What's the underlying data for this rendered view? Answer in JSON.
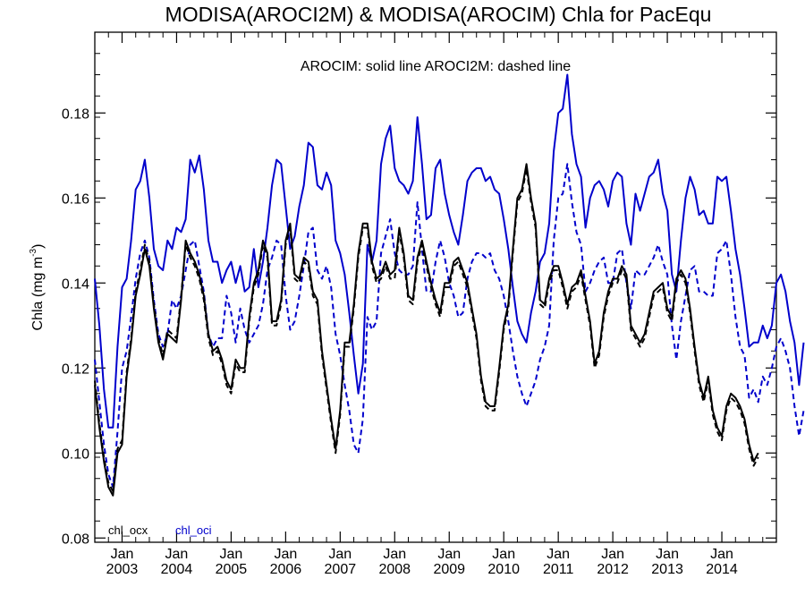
{
  "chart_data": {
    "type": "line",
    "title": "MODISA(AROCI2M) & MODISA(AROCIM)  Chla for PacEqu",
    "annotation": "AROCIM: solid line   AROCI2M: dashed line",
    "ylabel_main": "Chla (mg m",
    "ylabel_sup": "-3",
    "ylabel_close": ")",
    "ylim": [
      0.079,
      0.199
    ],
    "xlim": [
      2002.5,
      2015.0
    ],
    "y_ticks": [
      0.08,
      0.1,
      0.12,
      0.14,
      0.16,
      0.18
    ],
    "y_tick_labels": [
      "0.08",
      "0.10",
      "0.12",
      "0.14",
      "0.16",
      "0.18"
    ],
    "x_ticks": [
      2003,
      2004,
      2005,
      2006,
      2007,
      2008,
      2009,
      2010,
      2011,
      2012,
      2013,
      2014
    ],
    "x_tick_month": "Jan",
    "x_tick_labels": [
      "2003",
      "2004",
      "2005",
      "2006",
      "2007",
      "2008",
      "2009",
      "2010",
      "2011",
      "2012",
      "2013",
      "2014"
    ],
    "x_start": 2002.5,
    "x_step_months": 1,
    "legend": [
      {
        "label": "chl_ocx",
        "color": "#000000"
      },
      {
        "label": "chl_oci",
        "color": "#0000cc"
      }
    ],
    "series": [
      {
        "name": "chl_oci AROCIM",
        "color": "#0000cc",
        "style": "solid",
        "values": [
          0.141,
          0.13,
          0.115,
          0.106,
          0.106,
          0.125,
          0.139,
          0.141,
          0.15,
          0.162,
          0.164,
          0.169,
          0.16,
          0.148,
          0.144,
          0.143,
          0.15,
          0.148,
          0.153,
          0.152,
          0.155,
          0.169,
          0.166,
          0.17,
          0.162,
          0.15,
          0.145,
          0.145,
          0.14,
          0.143,
          0.145,
          0.14,
          0.144,
          0.138,
          0.139,
          0.148,
          0.139,
          0.145,
          0.153,
          0.163,
          0.169,
          0.168,
          0.158,
          0.148,
          0.151,
          0.158,
          0.163,
          0.173,
          0.172,
          0.163,
          0.162,
          0.166,
          0.163,
          0.15,
          0.147,
          0.142,
          0.133,
          0.123,
          0.114,
          0.121,
          0.149,
          0.145,
          0.15,
          0.168,
          0.174,
          0.177,
          0.167,
          0.164,
          0.163,
          0.161,
          0.164,
          0.179,
          0.168,
          0.155,
          0.156,
          0.167,
          0.169,
          0.161,
          0.156,
          0.152,
          0.149,
          0.156,
          0.164,
          0.166,
          0.167,
          0.167,
          0.164,
          0.165,
          0.162,
          0.161,
          0.155,
          0.148,
          0.139,
          0.131,
          0.128,
          0.126,
          0.133,
          0.138,
          0.145,
          0.147,
          0.154,
          0.171,
          0.18,
          0.181,
          0.189,
          0.175,
          0.168,
          0.165,
          0.153,
          0.16,
          0.163,
          0.164,
          0.162,
          0.158,
          0.164,
          0.166,
          0.165,
          0.154,
          0.149,
          0.161,
          0.157,
          0.161,
          0.165,
          0.166,
          0.169,
          0.161,
          0.157,
          0.142,
          0.138,
          0.15,
          0.16,
          0.165,
          0.162,
          0.156,
          0.157,
          0.154,
          0.154,
          0.165,
          0.164,
          0.165,
          0.157,
          0.148,
          0.142,
          0.134,
          0.125,
          0.126,
          0.126,
          0.13,
          0.127,
          0.13,
          0.14,
          0.142,
          0.138,
          0.131,
          0.126,
          0.116,
          0.126
        ]
      },
      {
        "name": "chl_oci AROCI2M",
        "color": "#0000cc",
        "style": "dashed",
        "values": [
          0.122,
          0.112,
          0.102,
          0.095,
          0.092,
          0.105,
          0.12,
          0.124,
          0.132,
          0.141,
          0.147,
          0.15,
          0.146,
          0.136,
          0.128,
          0.125,
          0.128,
          0.136,
          0.134,
          0.137,
          0.143,
          0.149,
          0.15,
          0.144,
          0.138,
          0.128,
          0.125,
          0.127,
          0.127,
          0.137,
          0.133,
          0.126,
          0.134,
          0.129,
          0.126,
          0.128,
          0.13,
          0.135,
          0.143,
          0.146,
          0.15,
          0.149,
          0.137,
          0.129,
          0.131,
          0.137,
          0.144,
          0.152,
          0.153,
          0.143,
          0.141,
          0.144,
          0.139,
          0.128,
          0.123,
          0.116,
          0.11,
          0.102,
          0.1,
          0.108,
          0.132,
          0.129,
          0.131,
          0.147,
          0.151,
          0.155,
          0.147,
          0.143,
          0.142,
          0.142,
          0.144,
          0.159,
          0.148,
          0.138,
          0.138,
          0.145,
          0.15,
          0.146,
          0.14,
          0.137,
          0.132,
          0.133,
          0.141,
          0.145,
          0.147,
          0.147,
          0.146,
          0.147,
          0.143,
          0.141,
          0.137,
          0.131,
          0.124,
          0.118,
          0.114,
          0.111,
          0.114,
          0.117,
          0.122,
          0.125,
          0.13,
          0.15,
          0.16,
          0.161,
          0.168,
          0.159,
          0.152,
          0.149,
          0.138,
          0.14,
          0.143,
          0.145,
          0.146,
          0.14,
          0.14,
          0.147,
          0.148,
          0.14,
          0.134,
          0.143,
          0.142,
          0.142,
          0.144,
          0.146,
          0.149,
          0.145,
          0.142,
          0.13,
          0.122,
          0.131,
          0.137,
          0.143,
          0.144,
          0.138,
          0.138,
          0.137,
          0.137,
          0.147,
          0.148,
          0.15,
          0.142,
          0.132,
          0.125,
          0.123,
          0.113,
          0.115,
          0.112,
          0.118,
          0.116,
          0.12,
          0.125,
          0.127,
          0.124,
          0.12,
          0.111,
          0.104,
          0.11
        ]
      },
      {
        "name": "chl_ocx AROCIM",
        "color": "#000000",
        "style": "solid",
        "values": [
          0.116,
          0.106,
          0.098,
          0.092,
          0.09,
          0.1,
          0.102,
          0.118,
          0.126,
          0.137,
          0.142,
          0.148,
          0.144,
          0.134,
          0.126,
          0.122,
          0.128,
          0.127,
          0.126,
          0.136,
          0.15,
          0.147,
          0.145,
          0.142,
          0.137,
          0.128,
          0.124,
          0.125,
          0.122,
          0.117,
          0.115,
          0.122,
          0.12,
          0.12,
          0.132,
          0.14,
          0.143,
          0.15,
          0.147,
          0.131,
          0.131,
          0.136,
          0.15,
          0.154,
          0.142,
          0.141,
          0.146,
          0.145,
          0.138,
          0.136,
          0.124,
          0.116,
          0.108,
          0.101,
          0.11,
          0.126,
          0.126,
          0.135,
          0.147,
          0.154,
          0.154,
          0.145,
          0.141,
          0.142,
          0.145,
          0.142,
          0.143,
          0.153,
          0.147,
          0.137,
          0.136,
          0.146,
          0.15,
          0.145,
          0.14,
          0.136,
          0.133,
          0.14,
          0.14,
          0.145,
          0.146,
          0.143,
          0.14,
          0.134,
          0.128,
          0.118,
          0.112,
          0.111,
          0.111,
          0.12,
          0.13,
          0.135,
          0.148,
          0.16,
          0.162,
          0.168,
          0.16,
          0.154,
          0.136,
          0.135,
          0.141,
          0.144,
          0.144,
          0.14,
          0.135,
          0.139,
          0.14,
          0.143,
          0.137,
          0.131,
          0.121,
          0.124,
          0.133,
          0.138,
          0.141,
          0.141,
          0.144,
          0.142,
          0.13,
          0.128,
          0.126,
          0.128,
          0.133,
          0.138,
          0.139,
          0.14,
          0.134,
          0.132,
          0.141,
          0.143,
          0.141,
          0.134,
          0.125,
          0.117,
          0.113,
          0.118,
          0.11,
          0.106,
          0.104,
          0.111,
          0.114,
          0.113,
          0.111,
          0.108,
          0.102,
          0.098,
          0.1
        ]
      },
      {
        "name": "chl_ocx AROCI2M",
        "color": "#000000",
        "style": "dashed",
        "values": [
          0.117,
          0.107,
          0.099,
          0.093,
          0.091,
          0.101,
          0.103,
          0.119,
          0.127,
          0.138,
          0.143,
          0.149,
          0.145,
          0.135,
          0.127,
          0.123,
          0.129,
          0.128,
          0.127,
          0.137,
          0.149,
          0.146,
          0.144,
          0.141,
          0.136,
          0.127,
          0.123,
          0.124,
          0.121,
          0.116,
          0.114,
          0.121,
          0.119,
          0.119,
          0.131,
          0.139,
          0.142,
          0.149,
          0.146,
          0.13,
          0.13,
          0.135,
          0.149,
          0.153,
          0.141,
          0.14,
          0.145,
          0.144,
          0.137,
          0.135,
          0.123,
          0.115,
          0.107,
          0.1,
          0.109,
          0.125,
          0.125,
          0.134,
          0.146,
          0.153,
          0.153,
          0.144,
          0.14,
          0.141,
          0.144,
          0.141,
          0.141,
          0.152,
          0.146,
          0.136,
          0.135,
          0.145,
          0.149,
          0.144,
          0.139,
          0.135,
          0.132,
          0.139,
          0.139,
          0.144,
          0.145,
          0.142,
          0.139,
          0.133,
          0.127,
          0.117,
          0.111,
          0.11,
          0.11,
          0.119,
          0.129,
          0.134,
          0.147,
          0.159,
          0.161,
          0.167,
          0.159,
          0.153,
          0.135,
          0.134,
          0.14,
          0.143,
          0.143,
          0.139,
          0.134,
          0.138,
          0.139,
          0.142,
          0.136,
          0.13,
          0.12,
          0.123,
          0.132,
          0.137,
          0.14,
          0.14,
          0.143,
          0.141,
          0.129,
          0.127,
          0.125,
          0.127,
          0.132,
          0.137,
          0.138,
          0.139,
          0.133,
          0.131,
          0.14,
          0.142,
          0.14,
          0.133,
          0.124,
          0.116,
          0.112,
          0.117,
          0.109,
          0.105,
          0.103,
          0.11,
          0.113,
          0.112,
          0.11,
          0.107,
          0.101,
          0.097,
          0.099
        ]
      }
    ]
  }
}
